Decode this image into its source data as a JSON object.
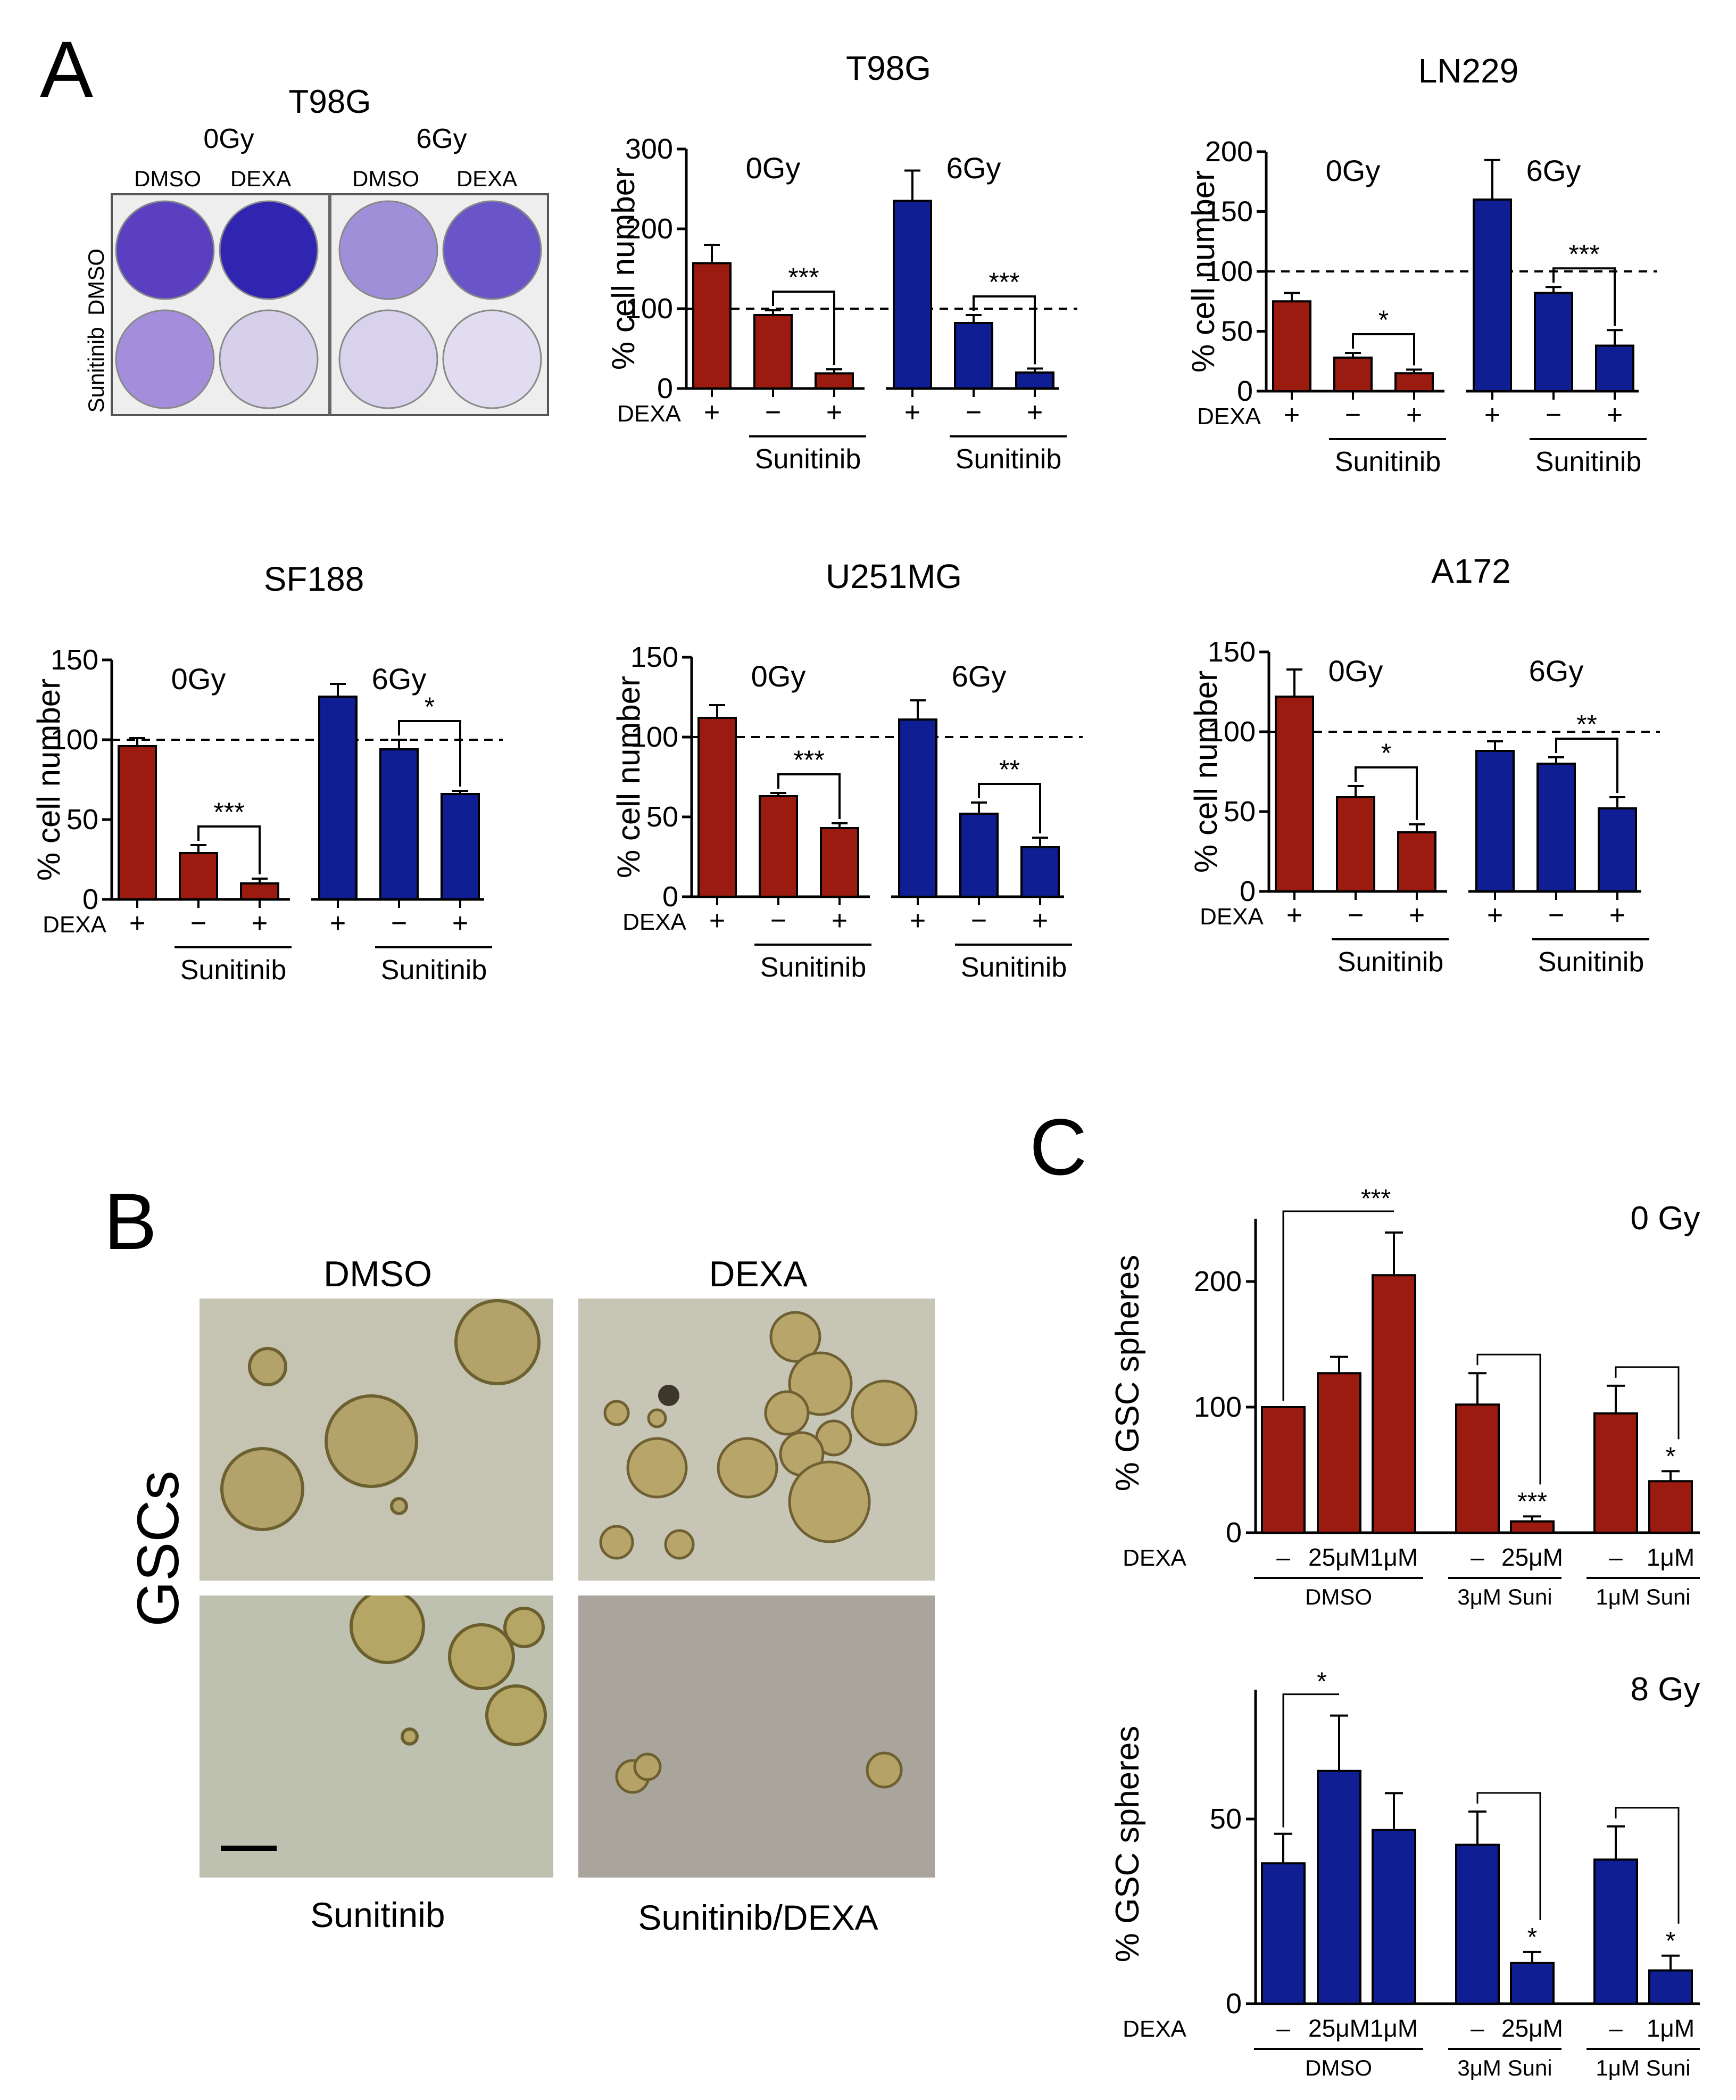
{
  "panel_letters": {
    "a": "A",
    "b": "B",
    "c": "C"
  },
  "plate": {
    "title": "T98G",
    "dose_0": "0Gy",
    "dose_6": "6Gy",
    "col_dmso_1": "DMSO",
    "col_dexa_1": "DEXA",
    "col_dmso_2": "DMSO",
    "col_dexa_2": "DEXA",
    "row_dmso": "DMSO",
    "row_sunitinib": "Sunitinib"
  },
  "spheres": {
    "top_left": "DMSO",
    "top_right": "DEXA",
    "bottom_left": "Sunitinib",
    "bottom_right": "Sunitinib/DEXA",
    "row_label": "GSCs"
  },
  "colors": {
    "red": "#9b1b11",
    "blue": "#0f1f93",
    "dish": "#4a36b8",
    "photo": "#c9c7b7"
  },
  "chart_data": [
    {
      "type": "bar",
      "title": "T98G",
      "ylabel": "% cell number",
      "ylim": [
        0,
        300
      ],
      "yticks": [
        0,
        100,
        200,
        300
      ],
      "groups": [
        "0Gy",
        "6Gy"
      ],
      "dexa_label": "DEXA",
      "treatment_label": "Sunitinib",
      "reference_line": 100,
      "categories": [
        "+",
        "−",
        "+"
      ],
      "series": [
        {
          "name": "0Gy",
          "color": "red",
          "values": [
            157,
            92,
            19
          ],
          "errors": [
            23,
            6,
            5
          ]
        },
        {
          "name": "6Gy",
          "color": "blue",
          "values": [
            235,
            82,
            20
          ],
          "errors": [
            38,
            10,
            5
          ]
        }
      ],
      "significance": [
        {
          "group": 0,
          "text": "***"
        },
        {
          "group": 1,
          "text": "***"
        }
      ]
    },
    {
      "type": "bar",
      "title": "LN229",
      "ylabel": "% cell number",
      "ylim": [
        0,
        200
      ],
      "yticks": [
        0,
        50,
        100,
        150,
        200
      ],
      "groups": [
        "0Gy",
        "6Gy"
      ],
      "dexa_label": "DEXA",
      "treatment_label": "Sunitinib",
      "reference_line": 100,
      "categories": [
        "+",
        "−",
        "+"
      ],
      "series": [
        {
          "name": "0Gy",
          "color": "red",
          "values": [
            75,
            28,
            15
          ],
          "errors": [
            7,
            4,
            3
          ]
        },
        {
          "name": "6Gy",
          "color": "blue",
          "values": [
            160,
            82,
            38
          ],
          "errors": [
            33,
            5,
            13
          ]
        }
      ],
      "significance": [
        {
          "group": 0,
          "text": "*"
        },
        {
          "group": 1,
          "text": "***"
        }
      ]
    },
    {
      "type": "bar",
      "title": "SF188",
      "ylabel": "% cell number",
      "ylim": [
        0,
        150
      ],
      "yticks": [
        0,
        50,
        100,
        150
      ],
      "groups": [
        "0Gy",
        "6Gy"
      ],
      "dexa_label": "DEXA",
      "treatment_label": "Sunitinib",
      "reference_line": 100,
      "categories": [
        "+",
        "−",
        "+"
      ],
      "series": [
        {
          "name": "0Gy",
          "color": "red",
          "values": [
            96,
            29,
            10
          ],
          "errors": [
            5,
            5,
            3
          ]
        },
        {
          "name": "6Gy",
          "color": "blue",
          "values": [
            127,
            94,
            66
          ],
          "errors": [
            8,
            6,
            2
          ]
        }
      ],
      "significance": [
        {
          "group": 0,
          "text": "***"
        },
        {
          "group": 1,
          "text": "*"
        }
      ]
    },
    {
      "type": "bar",
      "title": "U251MG",
      "ylabel": "% cell number",
      "ylim": [
        0,
        150
      ],
      "yticks": [
        0,
        50,
        100,
        150
      ],
      "groups": [
        "0Gy",
        "6Gy"
      ],
      "dexa_label": "DEXA",
      "treatment_label": "Sunitinib",
      "reference_line": 100,
      "categories": [
        "+",
        "−",
        "+"
      ],
      "series": [
        {
          "name": "0Gy",
          "color": "red",
          "values": [
            112,
            63,
            43
          ],
          "errors": [
            8,
            2,
            3
          ]
        },
        {
          "name": "6Gy",
          "color": "blue",
          "values": [
            111,
            52,
            31
          ],
          "errors": [
            12,
            7,
            6
          ]
        }
      ],
      "significance": [
        {
          "group": 0,
          "text": "***"
        },
        {
          "group": 1,
          "text": "**"
        }
      ]
    },
    {
      "type": "bar",
      "title": "A172",
      "ylabel": "% cell number",
      "ylim": [
        0,
        150
      ],
      "yticks": [
        0,
        50,
        100,
        150
      ],
      "groups": [
        "0Gy",
        "6Gy"
      ],
      "dexa_label": "DEXA",
      "treatment_label": "Sunitinib",
      "reference_line": 100,
      "categories": [
        "+",
        "−",
        "+"
      ],
      "series": [
        {
          "name": "0Gy",
          "color": "red",
          "values": [
            122,
            59,
            37
          ],
          "errors": [
            17,
            7,
            5
          ]
        },
        {
          "name": "6Gy",
          "color": "blue",
          "values": [
            88,
            80,
            52
          ],
          "errors": [
            6,
            4,
            7
          ]
        }
      ],
      "significance": [
        {
          "group": 0,
          "text": "*"
        },
        {
          "group": 1,
          "text": "**"
        }
      ]
    },
    {
      "type": "bar",
      "title": "0 Gy",
      "ylabel": "% GSC spheres",
      "ylim": [
        0,
        250
      ],
      "yticks": [
        0,
        100,
        200
      ],
      "color": "red",
      "dexa_label": "DEXA",
      "categories": [
        "–",
        "25μM",
        "1μM",
        "–",
        "25μM",
        "–",
        "1μM"
      ],
      "values": [
        100,
        127,
        205,
        102,
        9,
        95,
        41
      ],
      "errors": [
        0,
        13,
        34,
        25,
        4,
        22,
        8
      ],
      "group_labels": [
        {
          "text": "DMSO",
          "from": 0,
          "to": 2
        },
        {
          "text": "3μM Suni",
          "from": 3,
          "to": 4
        },
        {
          "text": "1μM Suni",
          "from": 5,
          "to": 6
        }
      ],
      "significance": [
        {
          "from": 0,
          "to": 2,
          "text": "***",
          "type": "top"
        },
        {
          "from": 3,
          "to": 4,
          "text": "***",
          "type": "drop"
        },
        {
          "from": 5,
          "to": 6,
          "text": "*",
          "type": "drop"
        }
      ]
    },
    {
      "type": "bar",
      "title": "8 Gy",
      "ylabel": "% GSC spheres",
      "ylim": [
        0,
        85
      ],
      "yticks": [
        0,
        50
      ],
      "color": "blue",
      "dexa_label": "DEXA",
      "categories": [
        "–",
        "25μM",
        "1μM",
        "–",
        "25μM",
        "–",
        "1μM"
      ],
      "values": [
        38,
        63,
        47,
        43,
        11,
        39,
        9
      ],
      "errors": [
        8,
        15,
        10,
        9,
        3,
        9,
        4
      ],
      "group_labels": [
        {
          "text": "DMSO",
          "from": 0,
          "to": 2
        },
        {
          "text": "3μM Suni",
          "from": 3,
          "to": 4
        },
        {
          "text": "1μM Suni",
          "from": 5,
          "to": 6
        }
      ],
      "significance": [
        {
          "from": 0,
          "to": 1,
          "text": "*",
          "type": "top"
        },
        {
          "from": 3,
          "to": 4,
          "text": "*",
          "type": "drop"
        },
        {
          "from": 5,
          "to": 6,
          "text": "*",
          "type": "drop"
        }
      ]
    }
  ]
}
